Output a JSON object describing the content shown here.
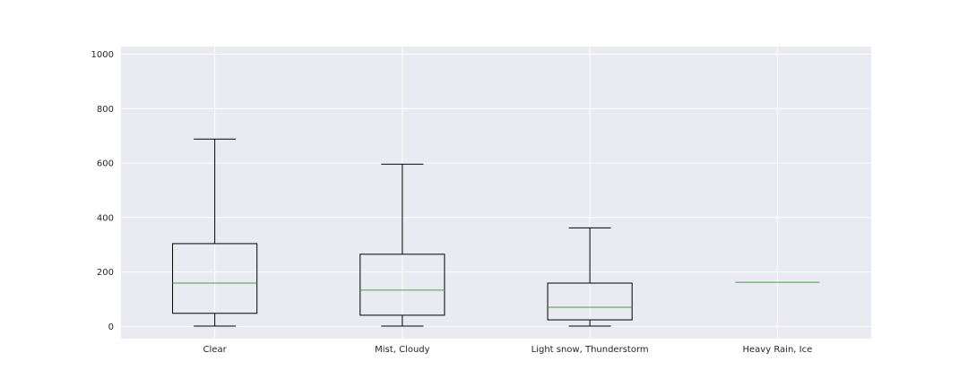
{
  "chart_data": {
    "type": "box",
    "title": "",
    "xlabel": "",
    "ylabel": "",
    "ylim": [
      -45,
      1028
    ],
    "yticks": [
      0,
      200,
      400,
      600,
      800,
      1000
    ],
    "grid": true,
    "categories": [
      "Clear",
      "Mist, Cloudy",
      "Light snow, Thunderstorm",
      "Heavy Rain, Ice"
    ],
    "boxes": [
      {
        "whisker_low": 1,
        "q1": 48,
        "median": 159,
        "q3": 304,
        "whisker_high": 688
      },
      {
        "whisker_low": 1,
        "q1": 41,
        "median": 133,
        "q3": 265,
        "whisker_high": 596
      },
      {
        "whisker_low": 1,
        "q1": 24,
        "median": 70,
        "q3": 159,
        "whisker_high": 362
      },
      {
        "whisker_low": 162,
        "q1": 162,
        "median": 162,
        "q3": 162,
        "whisker_high": 162
      }
    ],
    "colors": {
      "background": "#EAEAF2",
      "grid": "#FFFFFF",
      "box": "#000000",
      "median": "#4C9A4C"
    }
  }
}
